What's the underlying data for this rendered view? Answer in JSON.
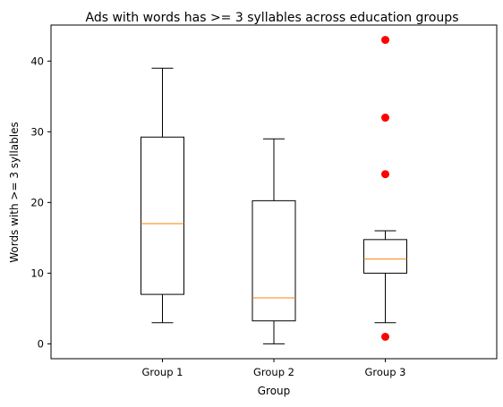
{
  "chart_data": {
    "type": "box",
    "title": "Ads with words has >= 3 syllables across education groups",
    "xlabel": "Group",
    "ylabel": "Words with >= 3 syllables",
    "ylim": [
      -2.1,
      45.1
    ],
    "yticks": [
      0,
      10,
      20,
      30,
      40
    ],
    "categories": [
      "Group 1",
      "Group 2",
      "Group 3"
    ],
    "boxes": [
      {
        "name": "Group 1",
        "whisker_low": 3,
        "q1": 7,
        "median": 17,
        "q3": 29.25,
        "whisker_high": 39,
        "outliers": []
      },
      {
        "name": "Group 2",
        "whisker_low": 0,
        "q1": 3.25,
        "median": 6.5,
        "q3": 20.25,
        "whisker_high": 29,
        "outliers": []
      },
      {
        "name": "Group 3",
        "whisker_low": 3,
        "q1": 10,
        "median": 12,
        "q3": 14.75,
        "whisker_high": 16,
        "outliers": [
          1,
          24,
          32,
          43
        ]
      }
    ],
    "grid": false,
    "colors": {
      "box": "#000000",
      "median": "#ff7f0e",
      "outlier": "#ff0000",
      "background": "#ffffff"
    }
  }
}
